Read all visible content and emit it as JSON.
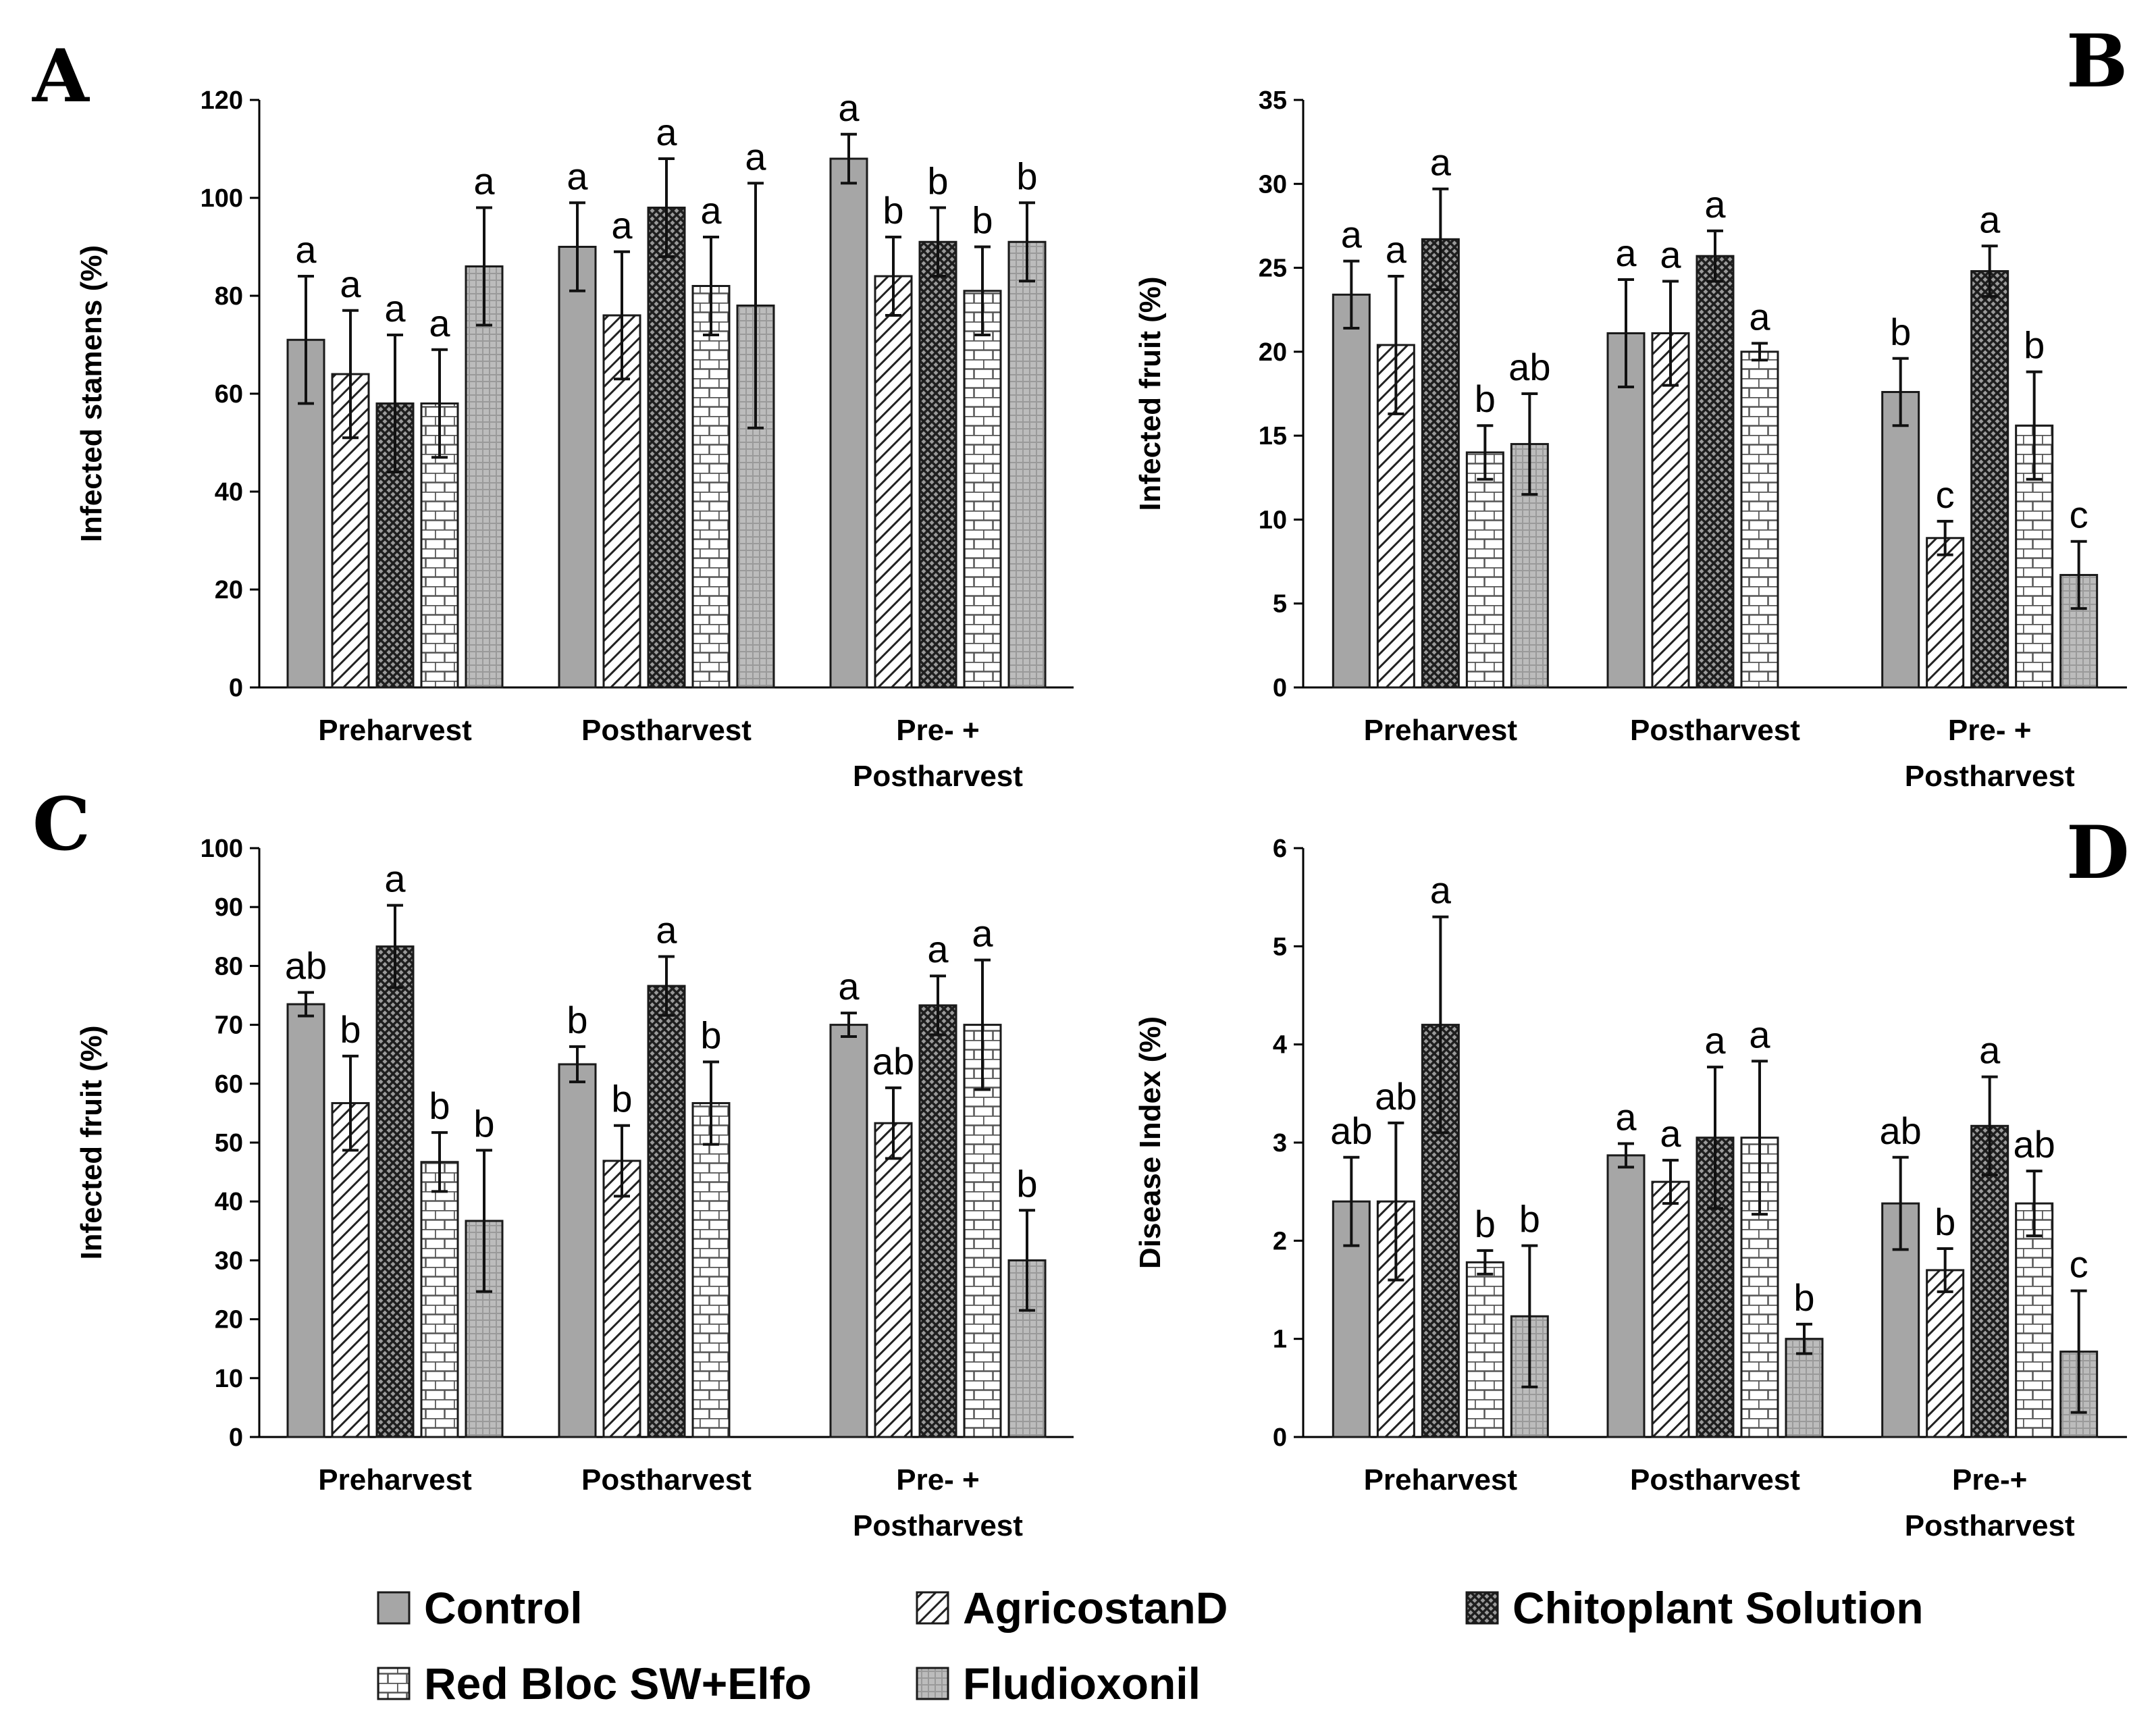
{
  "series_styles": [
    {
      "name": "Control",
      "fill": "#a6a6a6",
      "pattern": "solid"
    },
    {
      "name": "AgricostanD",
      "fill": "#ffffff",
      "pattern": "diagonal-hatch"
    },
    {
      "name": "Chitoplant Solution",
      "fill": "#7f7f7f",
      "pattern": "dark-cross-hatch"
    },
    {
      "name": "Red Bloc SW+Elfo",
      "fill": "#ffffff",
      "pattern": "brick"
    },
    {
      "name": "Fludioxonil",
      "fill": "#b3b3b3",
      "pattern": "light-grid"
    }
  ],
  "legend": {
    "items": [
      "Control",
      "AgricostanD",
      "Chitoplant Solution",
      "Red Bloc SW+Elfo",
      "Fludioxonil"
    ]
  },
  "chart_data": [
    {
      "panel": "A",
      "type": "bar",
      "ylabel": "Infected stamens (%)",
      "ylim": [
        0,
        120
      ],
      "yticks": [
        0,
        20,
        40,
        60,
        80,
        100,
        120
      ],
      "categories": [
        [
          "Preharvest"
        ],
        [
          "Postharvest"
        ],
        [
          "Pre- +",
          "Postharvest"
        ]
      ],
      "series": [
        {
          "name": "Control",
          "values": [
            71,
            90,
            108
          ],
          "errors": [
            13,
            9,
            5
          ],
          "letters": [
            "a",
            "a",
            "a"
          ]
        },
        {
          "name": "AgricostanD",
          "values": [
            64,
            76,
            84
          ],
          "errors": [
            13,
            13,
            8
          ],
          "letters": [
            "a",
            "a",
            "b"
          ]
        },
        {
          "name": "Chitoplant Solution",
          "values": [
            58,
            98,
            91
          ],
          "errors": [
            14,
            10,
            7
          ],
          "letters": [
            "a",
            "a",
            "b"
          ]
        },
        {
          "name": "Red Bloc SW+Elfo",
          "values": [
            58,
            82,
            81
          ],
          "errors": [
            11,
            10,
            9
          ],
          "letters": [
            "a",
            "a",
            "b"
          ]
        },
        {
          "name": "Fludioxonil",
          "values": [
            86,
            78,
            91
          ],
          "errors": [
            12,
            25,
            8
          ],
          "letters": [
            "a",
            "a",
            "b"
          ]
        }
      ]
    },
    {
      "panel": "B",
      "type": "bar",
      "ylabel": "Infected fruit (%)",
      "ylim": [
        0,
        35
      ],
      "yticks": [
        0,
        5,
        10,
        15,
        20,
        25,
        30,
        35
      ],
      "categories": [
        [
          "Preharvest"
        ],
        [
          "Postharvest"
        ],
        [
          "Pre- +",
          "Postharvest"
        ]
      ],
      "series": [
        {
          "name": "Control",
          "values": [
            23.4,
            21.1,
            17.6
          ],
          "errors": [
            2,
            3.2,
            2
          ],
          "letters": [
            "a",
            "a",
            "b"
          ]
        },
        {
          "name": "AgricostanD",
          "values": [
            20.4,
            21.1,
            8.9
          ],
          "errors": [
            4.1,
            3.1,
            1
          ],
          "letters": [
            "a",
            "a",
            "c"
          ]
        },
        {
          "name": "Chitoplant Solution",
          "values": [
            26.7,
            25.7,
            24.8
          ],
          "errors": [
            3,
            1.5,
            1.5
          ],
          "letters": [
            "a",
            "a",
            "a"
          ]
        },
        {
          "name": "Red Bloc SW+Elfo",
          "values": [
            14,
            20,
            15.6
          ],
          "errors": [
            1.6,
            0.5,
            3.2
          ],
          "letters": [
            "b",
            "a",
            "b"
          ]
        },
        {
          "name": "Fludioxonil",
          "values": [
            14.5,
            null,
            6.7
          ],
          "errors": [
            3,
            null,
            2
          ],
          "letters": [
            "ab",
            null,
            "c"
          ]
        }
      ]
    },
    {
      "panel": "C",
      "type": "bar",
      "ylabel": "Infected fruit (%)",
      "ylim": [
        0,
        100
      ],
      "yticks": [
        0,
        10,
        20,
        30,
        40,
        50,
        60,
        70,
        80,
        90,
        100
      ],
      "categories": [
        [
          "Preharvest"
        ],
        [
          "Postharvest"
        ],
        [
          "Pre- +",
          "Postharvest"
        ]
      ],
      "series": [
        {
          "name": "Control",
          "values": [
            73.5,
            63.3,
            70
          ],
          "errors": [
            2,
            3,
            2
          ],
          "letters": [
            "ab",
            "b",
            "a"
          ]
        },
        {
          "name": "AgricostanD",
          "values": [
            56.7,
            46.9,
            53.3
          ],
          "errors": [
            8,
            6,
            6
          ],
          "letters": [
            "b",
            "b",
            "ab"
          ]
        },
        {
          "name": "Chitoplant Solution",
          "values": [
            83.3,
            76.6,
            73.3
          ],
          "errors": [
            7,
            5,
            5
          ],
          "letters": [
            "a",
            "a",
            "a"
          ]
        },
        {
          "name": "Red Bloc SW+Elfo",
          "values": [
            46.7,
            56.7,
            70
          ],
          "errors": [
            5,
            7,
            11
          ],
          "letters": [
            "b",
            "b",
            "a"
          ]
        },
        {
          "name": "Fludioxonil",
          "values": [
            36.7,
            null,
            30
          ],
          "errors": [
            12,
            null,
            8.5
          ],
          "letters": [
            "b",
            null,
            "b"
          ]
        }
      ]
    },
    {
      "panel": "D",
      "type": "bar",
      "ylabel": "Disease Index (%)",
      "ylim": [
        0,
        6
      ],
      "yticks": [
        0,
        1,
        2,
        3,
        4,
        5,
        6
      ],
      "categories": [
        [
          "Preharvest"
        ],
        [
          "Postharvest"
        ],
        [
          "Pre-+",
          "Postharvest"
        ]
      ],
      "series": [
        {
          "name": "Control",
          "values": [
            2.4,
            2.87,
            2.38
          ],
          "errors": [
            0.45,
            0.12,
            0.47
          ],
          "letters": [
            "ab",
            "a",
            "ab"
          ]
        },
        {
          "name": "AgricostanD",
          "values": [
            2.4,
            2.6,
            1.7
          ],
          "errors": [
            0.8,
            0.22,
            0.22
          ],
          "letters": [
            "ab",
            "a",
            "b"
          ]
        },
        {
          "name": "Chitoplant Solution",
          "values": [
            4.2,
            3.05,
            3.17
          ],
          "errors": [
            1.1,
            0.72,
            0.5
          ],
          "letters": [
            "a",
            "a",
            "a"
          ]
        },
        {
          "name": "Red Bloc SW+Elfo",
          "values": [
            1.78,
            3.05,
            2.38
          ],
          "errors": [
            0.12,
            0.78,
            0.33
          ],
          "letters": [
            "b",
            "a",
            "ab"
          ]
        },
        {
          "name": "Fludioxonil",
          "values": [
            1.23,
            1.0,
            0.87
          ],
          "errors": [
            0.72,
            0.15,
            0.62
          ],
          "letters": [
            "b",
            "b",
            "c"
          ]
        }
      ]
    }
  ]
}
